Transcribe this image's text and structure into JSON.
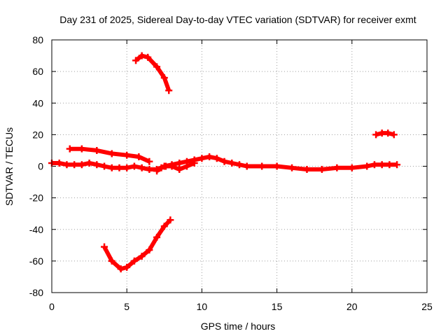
{
  "chart_data": {
    "type": "scatter",
    "title": "Day 231 of 2025, Sidereal Day-to-day VTEC variation (SDTVAR) for receiver exmt",
    "xlabel": "GPS time / hours",
    "ylabel": "SDTVAR / TECUs",
    "xlim": [
      0,
      25
    ],
    "ylim": [
      -80,
      80
    ],
    "xticks": [
      0,
      5,
      10,
      15,
      20,
      25
    ],
    "xtick_labels": [
      "0",
      "5",
      "10",
      "15",
      "20",
      "25"
    ],
    "yticks": [
      -80,
      -60,
      -40,
      -20,
      0,
      20,
      40,
      60,
      80
    ],
    "ytick_labels": [
      "-80",
      "-60",
      "-40",
      "-20",
      "0",
      "20",
      "40",
      "60",
      "80"
    ],
    "grid": true,
    "color": "#ff0000",
    "series": [
      {
        "name": "main-trace",
        "x": [
          0,
          0.5,
          1,
          1.5,
          2,
          2.5,
          3,
          3.5,
          4,
          4.5,
          5,
          5.5,
          6,
          6.5,
          7,
          7.5,
          8,
          8.5,
          9,
          9.5,
          10,
          10.5,
          11,
          11.5,
          12,
          12.5,
          13,
          14,
          15,
          16,
          17,
          18,
          19,
          20,
          21,
          21.5,
          22,
          22.5,
          23
        ],
        "values": [
          2,
          2,
          1,
          1,
          1,
          2,
          1,
          0,
          -1,
          -1,
          -1,
          0,
          -1,
          -2,
          -2,
          0,
          1,
          2,
          3,
          4,
          5,
          6,
          5,
          3,
          2,
          1,
          0,
          0,
          0,
          -1,
          -2,
          -2,
          -1,
          -1,
          0,
          1,
          1,
          1,
          1
        ]
      },
      {
        "name": "upper-arc-left",
        "x": [
          1.2,
          2,
          3,
          4,
          5,
          5.8,
          6.5
        ],
        "values": [
          11,
          11,
          10,
          8,
          7,
          6,
          3
        ]
      },
      {
        "name": "segment-7-9h",
        "x": [
          7,
          7.3,
          7.6,
          8,
          8.5,
          9,
          9.5
        ],
        "values": [
          -3,
          -1,
          0,
          0,
          -2,
          0,
          2
        ]
      },
      {
        "name": "high-arc",
        "x": [
          5.6,
          6,
          6.4,
          7,
          7.5,
          7.8
        ],
        "values": [
          67,
          70,
          69,
          63,
          56,
          48
        ]
      },
      {
        "name": "low-arc",
        "x": [
          3.5,
          4,
          4.6,
          5,
          5.5,
          6,
          6.5,
          7,
          7.5,
          7.9
        ],
        "values": [
          -51,
          -60,
          -65,
          -64,
          -60,
          -57,
          -53,
          -45,
          -38,
          -34
        ]
      },
      {
        "name": "late-arc",
        "x": [
          21.6,
          22,
          22.4,
          22.8
        ],
        "values": [
          20,
          21,
          21,
          20
        ]
      }
    ]
  }
}
